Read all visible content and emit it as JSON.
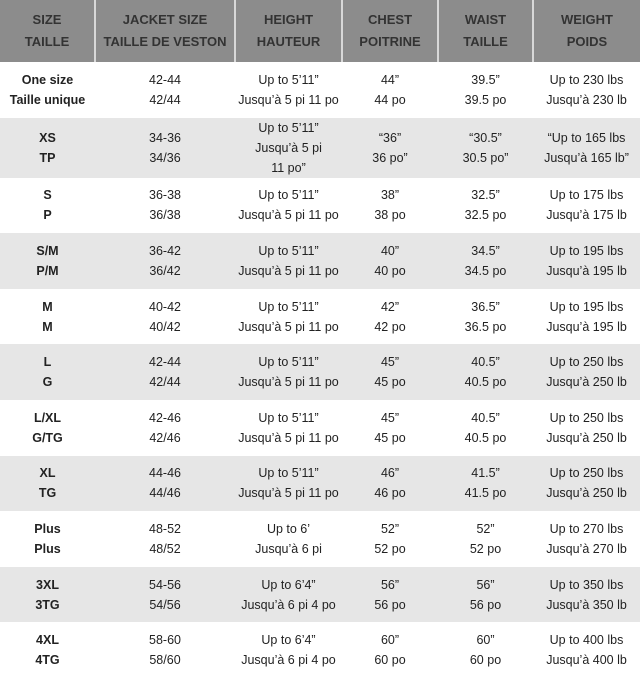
{
  "headers": [
    [
      "SIZE",
      "TAILLE"
    ],
    [
      "JACKET SIZE",
      "TAILLE DE VESTON"
    ],
    [
      "HEIGHT",
      "HAUTEUR"
    ],
    [
      "CHEST",
      "POITRINE"
    ],
    [
      "WAIST",
      "TAILLE"
    ],
    [
      "WEIGHT",
      "POIDS"
    ]
  ],
  "rows": [
    [
      [
        "One size",
        "Taille unique"
      ],
      [
        "42-44",
        "42/44"
      ],
      [
        "Up to 5’11”",
        "Jusqu’à 5 pi 11 po"
      ],
      [
        "44”",
        "44 po"
      ],
      [
        "39.5”",
        "39.5 po"
      ],
      [
        "Up to 230 lbs",
        "Jusqu’à 230 lb"
      ]
    ],
    [
      [
        "XS",
        "TP"
      ],
      [
        "34-36",
        "34/36"
      ],
      [
        "Up to 5’11”",
        "Jusqu’à 5 pi",
        "11 po”"
      ],
      [
        "“36”",
        "36 po”"
      ],
      [
        "“30.5”",
        "30.5 po”"
      ],
      [
        "“Up to 165 lbs",
        "Jusqu’à 165 lb”"
      ]
    ],
    [
      [
        "S",
        "P"
      ],
      [
        "36-38",
        "36/38"
      ],
      [
        "Up to 5’11”",
        "Jusqu’à 5 pi 11 po"
      ],
      [
        "38”",
        "38 po"
      ],
      [
        "32.5”",
        "32.5 po"
      ],
      [
        "Up to 175 lbs",
        "Jusqu’à 175 lb"
      ]
    ],
    [
      [
        "S/M",
        "P/M"
      ],
      [
        "36-42",
        "36/42"
      ],
      [
        "Up to 5’11”",
        "Jusqu’à 5 pi 11 po"
      ],
      [
        "40”",
        "40 po"
      ],
      [
        "34.5”",
        "34.5 po"
      ],
      [
        "Up to 195 lbs",
        "Jusqu’à 195 lb"
      ]
    ],
    [
      [
        "M",
        "M"
      ],
      [
        "40-42",
        "40/42"
      ],
      [
        "Up to 5’11”",
        "Jusqu’à 5 pi 11 po"
      ],
      [
        "42”",
        "42 po"
      ],
      [
        "36.5”",
        "36.5 po"
      ],
      [
        "Up to 195 lbs",
        "Jusqu’à 195 lb"
      ]
    ],
    [
      [
        "L",
        "G"
      ],
      [
        "42-44",
        "42/44"
      ],
      [
        "Up to 5’11”",
        "Jusqu’à 5 pi 11 po"
      ],
      [
        "45”",
        "45 po"
      ],
      [
        "40.5”",
        "40.5 po"
      ],
      [
        "Up to 250 lbs",
        "Jusqu’à 250 lb"
      ]
    ],
    [
      [
        "L/XL",
        "G/TG"
      ],
      [
        "42-46",
        "42/46"
      ],
      [
        "Up to 5’11”",
        "Jusqu’à 5 pi 11 po"
      ],
      [
        "45”",
        "45 po"
      ],
      [
        "40.5”",
        "40.5 po"
      ],
      [
        "Up to 250 lbs",
        "Jusqu’à 250 lb"
      ]
    ],
    [
      [
        "XL",
        "TG"
      ],
      [
        "44-46",
        "44/46"
      ],
      [
        "Up to 5’11”",
        "Jusqu’à 5 pi 11 po"
      ],
      [
        "46”",
        "46 po"
      ],
      [
        "41.5”",
        "41.5 po"
      ],
      [
        "Up to 250 lbs",
        "Jusqu’à 250 lb"
      ]
    ],
    [
      [
        "Plus",
        "Plus"
      ],
      [
        "48-52",
        "48/52"
      ],
      [
        "Up to 6’",
        "Jusqu’à 6 pi"
      ],
      [
        "52”",
        "52 po"
      ],
      [
        "52”",
        "52 po"
      ],
      [
        "Up to 270 lbs",
        "Jusqu’à 270 lb"
      ]
    ],
    [
      [
        "3XL",
        "3TG"
      ],
      [
        "54-56",
        "54/56"
      ],
      [
        "Up to 6’4”",
        "Jusqu’à 6 pi 4 po"
      ],
      [
        "56”",
        "56 po"
      ],
      [
        "56”",
        "56 po"
      ],
      [
        "Up to 350 lbs",
        "Jusqu’à 350 lb"
      ]
    ],
    [
      [
        "4XL",
        "4TG"
      ],
      [
        "58-60",
        "58/60"
      ],
      [
        "Up to 6’4”",
        "Jusqu’à 6 pi 4 po"
      ],
      [
        "60”",
        "60 po"
      ],
      [
        "60”",
        "60 po"
      ],
      [
        "Up to 400 lbs",
        "Jusqu’à 400 lb"
      ]
    ]
  ]
}
